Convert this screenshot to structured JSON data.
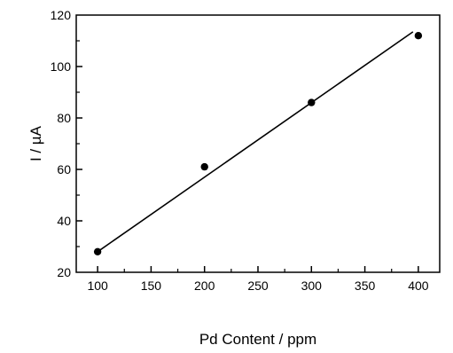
{
  "chart_data": {
    "type": "scatter",
    "xlabel": "Pd Content / ppm",
    "ylabel": "I / µA",
    "xlim": [
      80,
      420
    ],
    "ylim": [
      20,
      120
    ],
    "xticks": [
      "100",
      "150",
      "200",
      "250",
      "300",
      "350",
      "400"
    ],
    "yticks": [
      "20",
      "40",
      "60",
      "80",
      "100",
      "120"
    ],
    "grid": false,
    "series": [
      {
        "points": [
          {
            "x": 100,
            "y": 28
          },
          {
            "x": 200,
            "y": 61
          },
          {
            "x": 300,
            "y": 86
          },
          {
            "x": 400,
            "y": 112
          }
        ],
        "marker": "filled-circle",
        "color": "#000000"
      }
    ],
    "fit_line": {
      "x": [
        100,
        395
      ],
      "y": [
        28,
        113.5
      ],
      "color": "#000000"
    }
  }
}
